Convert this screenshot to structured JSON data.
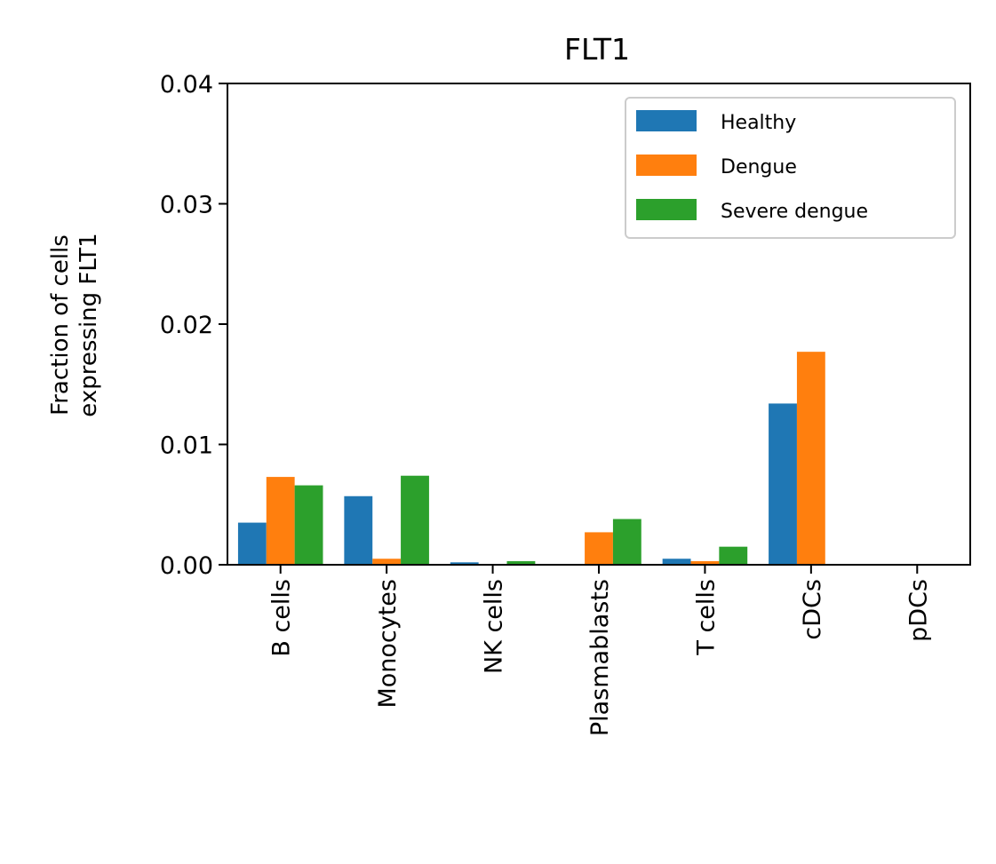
{
  "chart_data": {
    "type": "bar",
    "title": "FLT1",
    "xlabel": "",
    "ylabel_lines": [
      "Fraction of cells",
      "expressing FLT1"
    ],
    "categories": [
      "B cells",
      "Monocytes",
      "NK cells",
      "Plasmablasts",
      "T cells",
      "cDCs",
      "pDCs"
    ],
    "series": [
      {
        "name": "Healthy",
        "color": "#1f77b4",
        "values": [
          0.0035,
          0.0057,
          0.0002,
          0.0,
          0.0005,
          0.0134,
          0.0
        ]
      },
      {
        "name": "Dengue",
        "color": "#ff7f0e",
        "values": [
          0.0073,
          0.0005,
          0.0,
          0.0027,
          0.0003,
          0.0177,
          0.0
        ]
      },
      {
        "name": "Severe dengue",
        "color": "#2ca02c",
        "values": [
          0.0066,
          0.0074,
          0.0003,
          0.0038,
          0.0015,
          0.0,
          0.0
        ]
      }
    ],
    "ylim": [
      0,
      0.04
    ],
    "yticks": [
      "0.00",
      "0.01",
      "0.02",
      "0.03",
      "0.04"
    ],
    "grid": false,
    "legend_position": "top-right"
  }
}
